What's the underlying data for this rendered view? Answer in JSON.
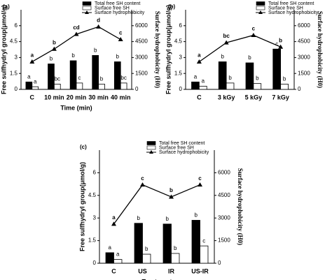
{
  "chart_data": [
    {
      "type": "combo",
      "panel_label": "(a)",
      "x_label": "Time (min)",
      "y_label": "Free sulfhydryl group(μmol/g)",
      "y2_label": "Surface hydrophobicity (H0)",
      "categories": [
        "C",
        "10 min",
        "20 min",
        "30 min",
        "40 min"
      ],
      "ylim": [
        0,
        7.5
      ],
      "yticks": [
        0,
        1.5,
        3,
        4.5,
        6
      ],
      "y2lim": [
        0,
        7500
      ],
      "y2ticks": [
        0,
        1500,
        3000,
        4500,
        6000
      ],
      "series": [
        {
          "name": "Total free SH content",
          "type": "bar",
          "color": "#000000",
          "values": [
            0.7,
            2.4,
            2.7,
            3.2,
            2.6
          ],
          "significance_labels": [
            "a",
            "b",
            "b",
            "b",
            "b"
          ]
        },
        {
          "name": "Surface free SH",
          "type": "bar",
          "color": "#ffffff",
          "values": [
            0.25,
            0.5,
            0.6,
            0.5,
            0.6
          ],
          "significance_labels": [
            "a",
            "bc",
            "c",
            "b",
            "bc"
          ]
        },
        {
          "name": "Surface hydrophobicity",
          "type": "line",
          "axis": "y2",
          "color": "#000000",
          "values": [
            2600,
            3800,
            5200,
            5900,
            4700
          ],
          "significance_labels": [
            "a",
            "b",
            "cd",
            "d",
            "c"
          ]
        }
      ]
    },
    {
      "type": "combo",
      "panel_label": "(b)",
      "y_label": "Free sulfhydryl group(μmol/g)",
      "y2_label": "Surface hydrophobicity (H0)",
      "categories": [
        "C",
        "3 kGy",
        "5 kGy",
        "7 kGy"
      ],
      "ylim": [
        0,
        7.5
      ],
      "yticks": [
        0,
        1.5,
        3,
        4.5,
        6
      ],
      "y2lim": [
        0,
        7500
      ],
      "y2ticks": [
        0,
        1500,
        3000,
        4500,
        6000
      ],
      "series": [
        {
          "name": "Total free SH content",
          "type": "bar",
          "color": "#000000",
          "values": [
            0.7,
            2.6,
            2.5,
            3.8
          ],
          "significance_labels": [
            "a",
            "b",
            "b",
            "c"
          ]
        },
        {
          "name": "Surface free SH",
          "type": "bar",
          "color": "#ffffff",
          "values": [
            0.3,
            0.6,
            0.55,
            0.5
          ],
          "significance_labels": [
            "a",
            "b",
            "b",
            "b"
          ]
        },
        {
          "name": "Surface hydrophobicity",
          "type": "line",
          "axis": "y2",
          "color": "#000000",
          "values": [
            2600,
            4400,
            5100,
            4000
          ],
          "significance_labels": [
            "a",
            "bc",
            "c",
            "b"
          ]
        }
      ]
    },
    {
      "type": "combo",
      "panel_label": "(c)",
      "x_label": "Treatment",
      "y_label": "Free sulfhydryl group(μmol/g)",
      "y2_label": "Surface hydrophobicity (H0)",
      "categories": [
        "C",
        "US",
        "IR",
        "US-IR"
      ],
      "ylim": [
        0,
        7.5
      ],
      "yticks": [
        0,
        1.5,
        3,
        4.5,
        6
      ],
      "y2lim": [
        0,
        7500
      ],
      "y2ticks": [
        0,
        1500,
        3000,
        4500,
        6000
      ],
      "series": [
        {
          "name": "Total free SH content",
          "type": "bar",
          "color": "#000000",
          "values": [
            0.7,
            2.65,
            2.6,
            2.85
          ],
          "significance_labels": [
            "a",
            "b",
            "b",
            "b"
          ]
        },
        {
          "name": "Surface free SH",
          "type": "bar",
          "color": "#ffffff",
          "values": [
            0.25,
            0.6,
            0.65,
            1.15
          ],
          "significance_labels": [
            "a",
            "b",
            "b",
            "c"
          ]
        },
        {
          "name": "Surface hydrophobicity",
          "type": "line",
          "axis": "y2",
          "color": "#000000",
          "values": [
            2600,
            5200,
            4400,
            5200
          ],
          "significance_labels": [
            "a",
            "c",
            "b",
            "c"
          ]
        }
      ]
    }
  ]
}
